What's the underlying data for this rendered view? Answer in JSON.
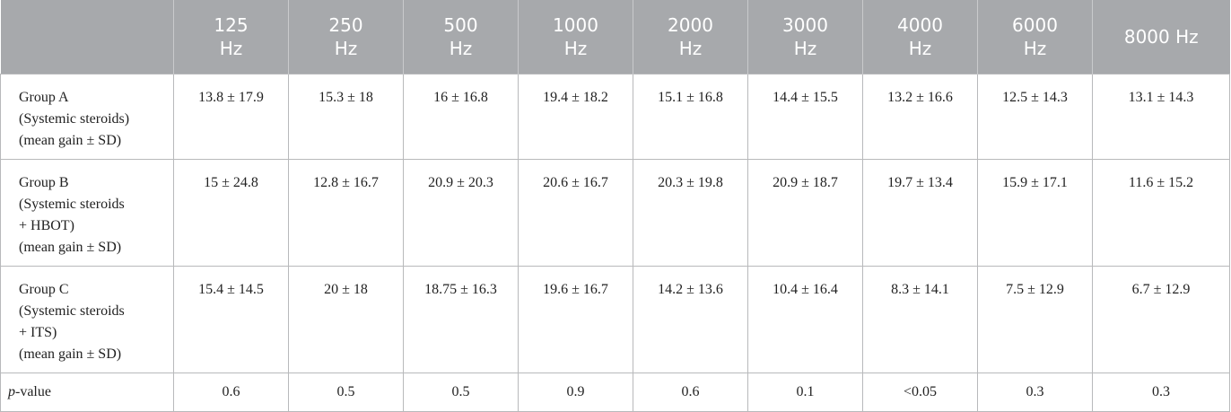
{
  "table": {
    "header": [
      "125 Hz",
      "250 Hz",
      "500 Hz",
      "1000 Hz",
      "2000 Hz",
      "3000 Hz",
      "4000 Hz",
      "6000 Hz",
      "8000 Hz"
    ],
    "rows": [
      {
        "label": [
          "Group A",
          "(Systemic steroids)",
          "(mean gain ± SD)"
        ],
        "cells": [
          "13.8 ± 17.9",
          "15.3 ± 18",
          "16 ± 16.8",
          "19.4 ± 18.2",
          "15.1 ± 16.8",
          "14.4 ± 15.5",
          "13.2 ± 16.6",
          "12.5 ± 14.3",
          "13.1 ± 14.3"
        ]
      },
      {
        "label": [
          "Group B",
          "(Systemic steroids",
          "+ HBOT)",
          "(mean gain ± SD)"
        ],
        "cells": [
          "15 ± 24.8",
          "12.8 ± 16.7",
          "20.9 ± 20.3",
          "20.6 ± 16.7",
          "20.3 ± 19.8",
          "20.9 ± 18.7",
          "19.7 ± 13.4",
          "15.9 ± 17.1",
          "11.6 ± 15.2"
        ]
      },
      {
        "label": [
          "Group C",
          "(Systemic steroids",
          "+ ITS)",
          "(mean gain ± SD)"
        ],
        "cells": [
          "15.4 ± 14.5",
          "20 ± 18",
          "18.75 ± 16.3",
          "19.6 ± 16.7",
          "14.2 ± 13.6",
          "10.4 ± 16.4",
          "8.3 ± 14.1",
          "7.5 ± 12.9",
          "6.7 ± 12.9"
        ]
      },
      {
        "label": {
          "italic": "p",
          "rest": "-value"
        },
        "cells": [
          "0.6",
          "0.5",
          "0.5",
          "0.9",
          "0.6",
          "0.1",
          "<0.05",
          "0.3",
          "0.3"
        ]
      }
    ]
  }
}
